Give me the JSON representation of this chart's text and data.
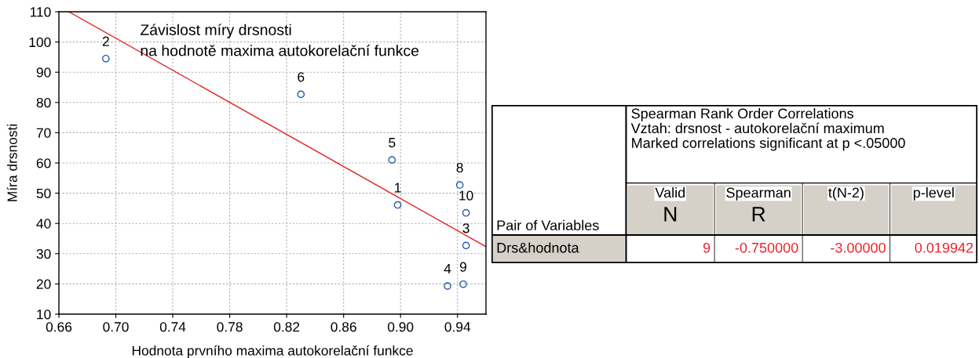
{
  "chart_data": [
    {
      "type": "scatter",
      "title": "Závislost míry drsnosti\nna hodnotě maxima autokorelační funkce",
      "xlabel": "Hodnota prvního maxima autokorelační funkce",
      "ylabel": "Míra drsnosti",
      "xlim": [
        0.66,
        0.96
      ],
      "xticks": [
        {
          "value": 0.66,
          "label": "0.66"
        },
        {
          "value": 0.7,
          "label": "0.70"
        },
        {
          "value": 0.74,
          "label": "0.74"
        },
        {
          "value": 0.78,
          "label": "0.78"
        },
        {
          "value": 0.82,
          "label": "0.82"
        },
        {
          "value": 0.86,
          "label": "0.86"
        },
        {
          "value": 0.9,
          "label": "0.90"
        },
        {
          "value": 0.94,
          "label": "0.94"
        }
      ],
      "ylim": [
        10,
        110
      ],
      "yticks": [
        10,
        20,
        30,
        40,
        50,
        60,
        70,
        80,
        90,
        100,
        110
      ],
      "grid": true,
      "series": [
        {
          "type": "scatter",
          "marker": "circle",
          "color": "#2a5caa",
          "x": [
            0.898,
            0.693,
            0.946,
            0.933,
            0.894,
            0.83,
            0.9416,
            0.944,
            0.946
          ],
          "values": [
            46.1,
            94.5,
            32.7,
            19.3,
            61.0,
            82.7,
            52.7,
            19.9,
            43.5
          ]
        },
        {
          "type": "line",
          "color": "#e32a2a",
          "x": [
            0.667,
            0.96
          ],
          "values": [
            110,
            32.3
          ]
        }
      ],
      "annotations": [
        {
          "text": "1",
          "x": 0.898,
          "y": 46.1
        },
        {
          "text": "2",
          "x": 0.693,
          "y": 94.5
        },
        {
          "text": "3",
          "x": 0.946,
          "y": 32.7
        },
        {
          "text": "4",
          "x": 0.933,
          "y": 19.3
        },
        {
          "text": "5",
          "x": 0.894,
          "y": 61.0
        },
        {
          "text": "6",
          "x": 0.83,
          "y": 82.7
        },
        {
          "text": "8",
          "x": 0.9416,
          "y": 52.7
        },
        {
          "text": "9",
          "x": 0.944,
          "y": 19.9
        },
        {
          "text": "10",
          "x": 0.946,
          "y": 43.5
        }
      ]
    },
    {
      "type": "other",
      "title": "Spearman Rank Order Correlations",
      "subtitle": "Vztah: drsnost - autokorelační maximum\nMarked correlations significant at p <.05000",
      "annotations": [
        "Pair of Variables",
        "Valid\nN",
        "Spearman\nR",
        "t(N-2)",
        "p-level",
        "Drs&hodnota",
        "9",
        "-0.750000",
        "-3.00000",
        "0.019942"
      ]
    }
  ]
}
